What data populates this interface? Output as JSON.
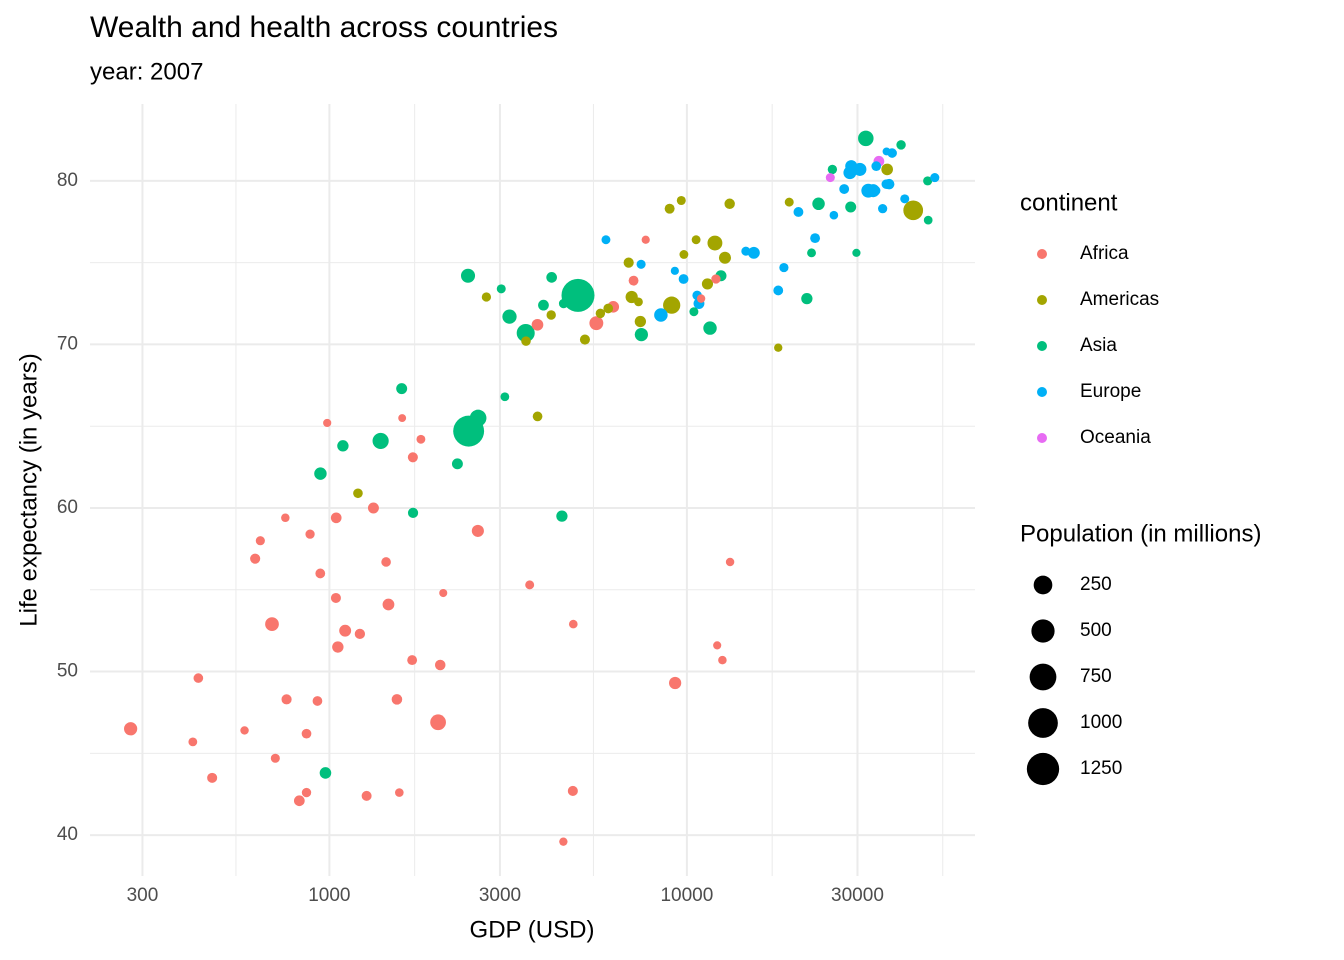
{
  "chart_data": {
    "type": "scatter",
    "title": "Wealth and health across countries",
    "subtitle": "year: 2007",
    "x_label": "GDP (USD)",
    "y_label": "Life expectancy (in years)",
    "log_x": true,
    "grid": true,
    "xlim": [
      214,
      63950
    ],
    "ylim": [
      37.5,
      84.7
    ],
    "xticks": [
      300,
      1000,
      3000,
      10000,
      30000
    ],
    "yticks": [
      40,
      50,
      60,
      70,
      80
    ],
    "legend_title": "continent",
    "size_legend": {
      "title": "Population (in millions)",
      "values": [
        250,
        500,
        750,
        1000,
        1250
      ]
    },
    "series": [
      {
        "name": "Africa",
        "color": "#F8766D",
        "x": [
          6223,
          4797,
          1441,
          12570,
          1217,
          430,
          2042,
          706,
          1704,
          986,
          278,
          3633,
          1545,
          2082,
          5581,
          12154,
          641,
          691,
          13206,
          753,
          1328,
          943,
          579,
          1463,
          1569,
          415,
          12057,
          1045,
          759,
          1043,
          1803,
          10957,
          3820,
          824,
          4811,
          620,
          2014,
          7670,
          863,
          1598,
          1712,
          863,
          926,
          9270,
          2602,
          4513,
          1107,
          883,
          7093,
          1056,
          1271,
          470
        ],
        "values": [
          72.3,
          42.7,
          56.7,
          50.7,
          52.3,
          49.6,
          50.4,
          44.7,
          50.7,
          65.2,
          46.5,
          55.3,
          48.3,
          54.8,
          71.3,
          51.6,
          58.0,
          52.9,
          56.7,
          59.4,
          60.0,
          56.0,
          46.4,
          54.1,
          42.6,
          45.7,
          74.0,
          59.4,
          48.3,
          54.5,
          64.2,
          72.8,
          71.2,
          42.1,
          52.9,
          56.9,
          46.9,
          76.4,
          46.2,
          65.5,
          63.1,
          42.6,
          48.2,
          49.3,
          58.6,
          39.6,
          52.5,
          58.4,
          73.9,
          51.5,
          42.4,
          43.5
        ],
        "sizes": [
          33.3,
          12.4,
          8.1,
          1.6,
          14.3,
          8.4,
          17.7,
          4.4,
          10.2,
          0.7,
          64.6,
          3.8,
          18.0,
          0.5,
          80.3,
          0.6,
          4.9,
          76.5,
          1.5,
          1.7,
          22.9,
          10.0,
          1.5,
          35.6,
          2.0,
          3.2,
          6.0,
          19.2,
          13.3,
          12.0,
          3.3,
          1.3,
          33.8,
          20.0,
          2.1,
          12.9,
          135.0,
          0.8,
          8.9,
          0.2,
          12.3,
          6.1,
          9.1,
          44.0,
          42.3,
          1.1,
          38.1,
          5.7,
          10.3,
          29.2,
          11.7,
          12.3
        ]
      },
      {
        "name": "Americas",
        "color": "#A3A500",
        "x": [
          12779,
          3822,
          9066,
          36319,
          13172,
          7007,
          9645,
          8948,
          6025,
          6873,
          5728,
          5186,
          1202,
          3548,
          7321,
          11978,
          2749,
          9809,
          4173,
          7409,
          19329,
          18009,
          42952,
          10611,
          11416
        ],
        "values": [
          75.3,
          65.6,
          72.4,
          80.7,
          78.6,
          72.9,
          78.8,
          78.3,
          72.2,
          75.0,
          71.9,
          70.3,
          60.9,
          70.2,
          72.6,
          76.2,
          72.9,
          75.5,
          71.8,
          71.4,
          78.7,
          69.8,
          78.2,
          76.4,
          73.7
        ],
        "sizes": [
          40.3,
          9.1,
          190.0,
          33.4,
          16.3,
          44.2,
          4.1,
          11.4,
          9.3,
          13.8,
          6.9,
          12.6,
          8.5,
          7.5,
          2.8,
          108.7,
          5.7,
          3.2,
          6.7,
          28.7,
          3.9,
          1.1,
          301.1,
          3.4,
          26.1
        ]
      },
      {
        "name": "Asia",
        "color": "#00BF7D",
        "x": [
          975,
          29796,
          1391,
          1714,
          4959,
          39725,
          2452,
          3541,
          11606,
          4471,
          25523,
          31656,
          4519,
          1593,
          23348,
          47307,
          10461,
          12452,
          3096,
          944,
          1091,
          22316,
          2606,
          3190,
          21655,
          47143,
          3970,
          4185,
          28718,
          7458,
          2442,
          3025,
          2281
        ],
        "values": [
          43.8,
          75.6,
          64.1,
          59.7,
          73.0,
          82.2,
          64.7,
          70.7,
          71.0,
          59.5,
          80.7,
          82.6,
          72.5,
          67.3,
          78.6,
          77.6,
          72.0,
          74.2,
          66.8,
          62.1,
          63.8,
          75.6,
          65.5,
          71.7,
          72.8,
          80.0,
          72.4,
          74.1,
          78.4,
          70.6,
          74.2,
          73.4,
          62.7
        ],
        "sizes": [
          31.9,
          0.7,
          150.4,
          14.1,
          1318.7,
          7.0,
          1110.4,
          223.5,
          69.5,
          27.5,
          6.4,
          127.5,
          6.1,
          23.3,
          49.0,
          2.5,
          3.9,
          24.8,
          2.9,
          47.8,
          28.9,
          3.2,
          169.3,
          91.1,
          27.6,
          4.6,
          20.4,
          19.3,
          23.2,
          65.1,
          85.3,
          4.0,
          22.2
        ]
      },
      {
        "name": "Europe",
        "color": "#00B0F6",
        "x": [
          5937,
          36126,
          33693,
          7446,
          10681,
          14619,
          22833,
          35278,
          33207,
          30470,
          32170,
          27538,
          18009,
          36181,
          40676,
          28570,
          9254,
          36798,
          49357,
          15390,
          20510,
          10808,
          9787,
          18678,
          25768,
          28821,
          33860,
          37506,
          8458,
          33203
        ],
        "values": [
          76.4,
          79.8,
          79.4,
          74.9,
          73.0,
          75.7,
          76.5,
          78.3,
          79.3,
          80.7,
          79.4,
          79.5,
          73.3,
          81.8,
          78.9,
          80.5,
          74.5,
          79.8,
          80.2,
          75.6,
          78.1,
          72.5,
          74.0,
          74.7,
          77.9,
          80.9,
          80.9,
          81.7,
          71.8,
          79.4
        ],
        "sizes": [
          3.6,
          8.2,
          10.4,
          4.6,
          7.3,
          4.5,
          10.2,
          5.5,
          5.2,
          61.1,
          82.4,
          10.7,
          10.0,
          0.3,
          4.1,
          58.1,
          0.7,
          16.6,
          4.6,
          38.5,
          10.6,
          22.3,
          10.2,
          5.4,
          2.0,
          40.4,
          9.0,
          7.6,
          71.2,
          60.8
        ]
      },
      {
        "name": "Oceania",
        "color": "#E76BF3",
        "x": [
          34435,
          25185
        ],
        "values": [
          81.2,
          80.2
        ],
        "sizes": [
          20.4,
          4.1
        ]
      }
    ]
  }
}
